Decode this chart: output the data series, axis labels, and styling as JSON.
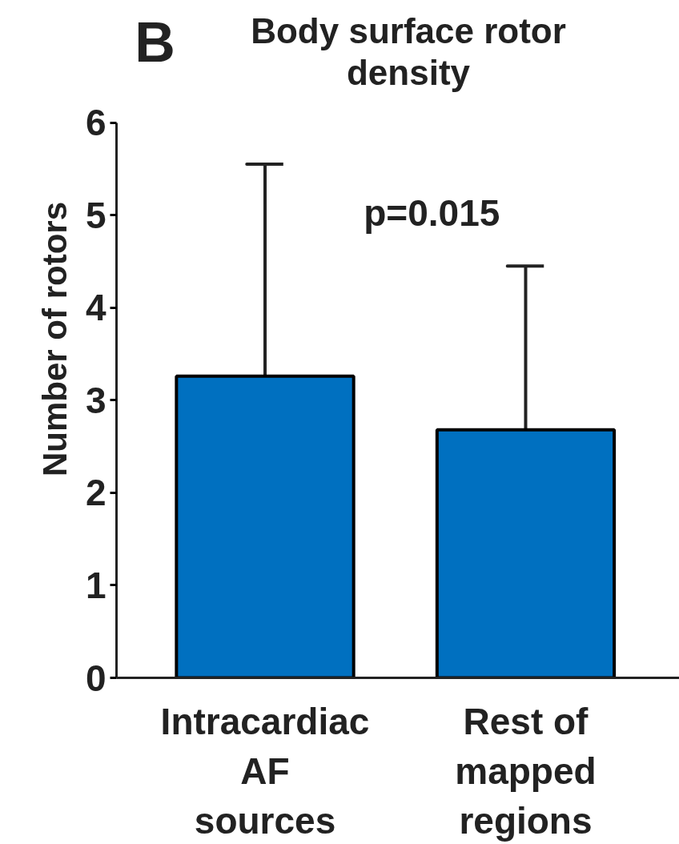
{
  "chart_data": {
    "type": "bar",
    "title": "Body surface rotor density",
    "ylabel": "Number of rotors",
    "categories": [
      "Intracardiac AF sources",
      "Rest of mapped regions"
    ],
    "values": [
      3.26,
      2.68
    ],
    "errors": [
      [
        3.26,
        5.55
      ],
      [
        2.68,
        4.45
      ]
    ],
    "color": "#0070c0",
    "ylim": [
      0,
      6
    ],
    "yticks": [
      0,
      1,
      2,
      3,
      4,
      5,
      6
    ],
    "grid": false,
    "annotations": [
      "B",
      "p=0.015"
    ]
  }
}
